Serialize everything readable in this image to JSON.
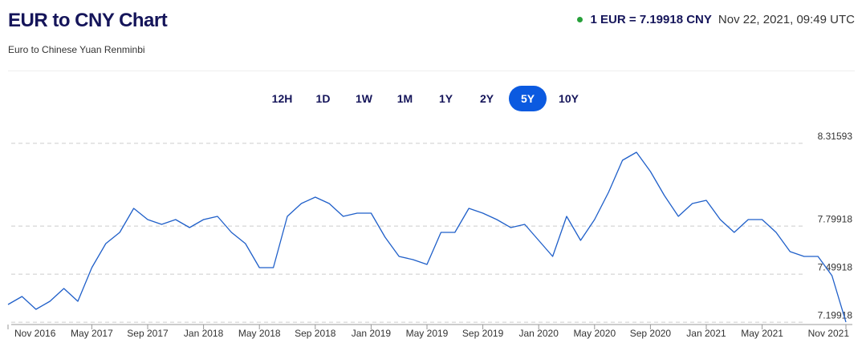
{
  "header": {
    "title": "EUR to CNY Chart",
    "subtitle": "Euro to Chinese Yuan Renminbi",
    "rate": "1 EUR = 7.19918 CNY",
    "date": "Nov 22, 2021, 09:49 UTC"
  },
  "range_buttons": {
    "items": [
      "12H",
      "1D",
      "1W",
      "1M",
      "1Y",
      "2Y",
      "5Y",
      "10Y"
    ],
    "active": "5Y"
  },
  "chart_data": {
    "type": "line",
    "color": "#1f5fc9",
    "grid": true,
    "x": [
      "2016-11",
      "2016-12",
      "2017-01",
      "2017-02",
      "2017-03",
      "2017-04",
      "2017-05",
      "2017-06",
      "2017-07",
      "2017-08",
      "2017-09",
      "2017-10",
      "2017-11",
      "2017-12",
      "2018-01",
      "2018-02",
      "2018-03",
      "2018-04",
      "2018-05",
      "2018-06",
      "2018-07",
      "2018-08",
      "2018-09",
      "2018-10",
      "2018-11",
      "2018-12",
      "2019-01",
      "2019-02",
      "2019-03",
      "2019-04",
      "2019-05",
      "2019-06",
      "2019-07",
      "2019-08",
      "2019-09",
      "2019-10",
      "2019-11",
      "2019-12",
      "2020-01",
      "2020-02",
      "2020-03",
      "2020-04",
      "2020-05",
      "2020-06",
      "2020-07",
      "2020-08",
      "2020-09",
      "2020-10",
      "2020-11",
      "2020-12",
      "2021-01",
      "2021-02",
      "2021-03",
      "2021-04",
      "2021-05",
      "2021-06",
      "2021-07",
      "2021-08",
      "2021-09",
      "2021-10",
      "2021-11"
    ],
    "values": [
      7.31,
      7.36,
      7.28,
      7.33,
      7.41,
      7.33,
      7.54,
      7.69,
      7.76,
      7.91,
      7.84,
      7.81,
      7.84,
      7.79,
      7.84,
      7.86,
      7.76,
      7.69,
      7.54,
      7.54,
      7.86,
      7.94,
      7.98,
      7.94,
      7.86,
      7.88,
      7.88,
      7.73,
      7.61,
      7.59,
      7.56,
      7.76,
      7.76,
      7.91,
      7.88,
      7.84,
      7.79,
      7.81,
      7.71,
      7.61,
      7.86,
      7.71,
      7.84,
      8.01,
      8.21,
      8.26,
      8.14,
      7.99,
      7.86,
      7.94,
      7.96,
      7.84,
      7.76,
      7.84,
      7.84,
      7.76,
      7.64,
      7.61,
      7.61,
      7.49,
      7.2
    ],
    "xlim": [
      "2016-11",
      "2021-11"
    ],
    "xticks": [
      {
        "value": "2016-11",
        "label": "Nov 2016"
      },
      {
        "value": "2017-05",
        "label": "May 2017"
      },
      {
        "value": "2017-09",
        "label": "Sep 2017"
      },
      {
        "value": "2018-01",
        "label": "Jan 2018"
      },
      {
        "value": "2018-05",
        "label": "May 2018"
      },
      {
        "value": "2018-09",
        "label": "Sep 2018"
      },
      {
        "value": "2019-01",
        "label": "Jan 2019"
      },
      {
        "value": "2019-05",
        "label": "May 2019"
      },
      {
        "value": "2019-09",
        "label": "Sep 2019"
      },
      {
        "value": "2020-01",
        "label": "Jan 2020"
      },
      {
        "value": "2020-05",
        "label": "May 2020"
      },
      {
        "value": "2020-09",
        "label": "Sep 2020"
      },
      {
        "value": "2021-01",
        "label": "Jan 2021"
      },
      {
        "value": "2021-05",
        "label": "May 2021"
      },
      {
        "value": "2021-11",
        "label": "Nov 2021"
      }
    ],
    "ylim": [
      7.19,
      8.36
    ],
    "yticks": [
      7.19918,
      7.49918,
      7.79918,
      8.31593
    ]
  }
}
